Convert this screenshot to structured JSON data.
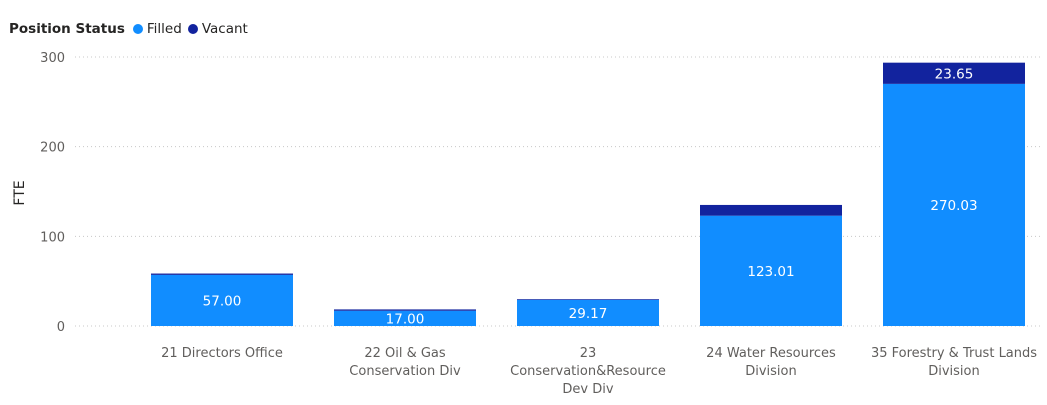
{
  "chart_data": {
    "type": "bar",
    "stacked": true,
    "legend_title": "Position Status",
    "legend_position": "top-left",
    "ylabel": "FTE",
    "xlabel": "",
    "ylim": [
      0,
      300
    ],
    "y_ticks": [
      0,
      100,
      200,
      300
    ],
    "y_tick_labels": [
      "0",
      "100",
      "200",
      "300"
    ],
    "grid": true,
    "categories": [
      "21 Directors Office",
      "22 Oil & Gas Conservation Div",
      "23 Conservation&Resource Dev Div",
      "24 Water Resources Division",
      "35 Forestry & Trust Lands Division"
    ],
    "category_label_lines": [
      [
        "21 Directors Office"
      ],
      [
        "22 Oil & Gas",
        "Conservation Div"
      ],
      [
        "23",
        "Conservation&Resource",
        "Dev Div"
      ],
      [
        "24 Water Resources",
        "Division"
      ],
      [
        "35 Forestry & Trust Lands",
        "Division"
      ]
    ],
    "series": [
      {
        "name": "Filled",
        "color": "#118DFF",
        "values": [
          57.0,
          17.0,
          29.17,
          123.01,
          270.03
        ],
        "data_labels": [
          "57.00",
          "17.00",
          "29.17",
          "123.01",
          "270.03"
        ]
      },
      {
        "name": "Vacant",
        "color": "#12239E",
        "values": [
          1.5,
          1.5,
          0.8,
          12.0,
          23.65
        ],
        "data_labels": [
          "",
          "",
          "",
          "",
          "23.65"
        ]
      }
    ]
  }
}
